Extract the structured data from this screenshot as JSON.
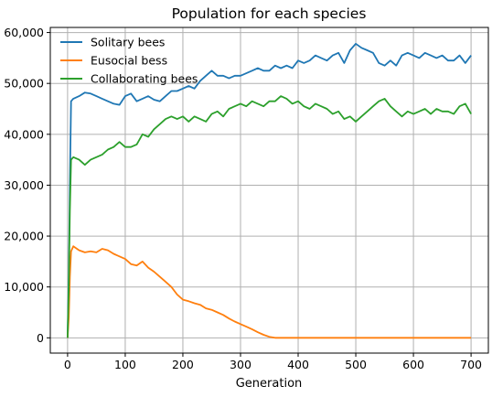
{
  "chart_data": {
    "type": "line",
    "title": "Population for each species",
    "xlabel": "Generation",
    "ylabel": "",
    "xlim": [
      -30,
      730
    ],
    "ylim": [
      -3000,
      61000
    ],
    "xticks": [
      0,
      100,
      200,
      300,
      400,
      500,
      600,
      700
    ],
    "yticks": [
      0,
      10000,
      20000,
      30000,
      40000,
      50000,
      60000
    ],
    "ytick_labels": [
      "0",
      "10,000",
      "20,000",
      "30,000",
      "40,000",
      "50,000",
      "60,000"
    ],
    "grid": true,
    "legend": "top-left",
    "series": [
      {
        "name": "Solitary bees",
        "color": "#1f77b4",
        "x": [
          0,
          2,
          4,
          6,
          10,
          20,
          30,
          40,
          50,
          60,
          70,
          80,
          90,
          100,
          110,
          120,
          130,
          140,
          150,
          160,
          170,
          180,
          190,
          200,
          210,
          220,
          230,
          240,
          250,
          260,
          270,
          280,
          290,
          300,
          310,
          320,
          330,
          340,
          350,
          360,
          370,
          380,
          390,
          400,
          410,
          420,
          430,
          440,
          450,
          460,
          470,
          480,
          490,
          500,
          510,
          520,
          530,
          540,
          550,
          560,
          570,
          580,
          590,
          600,
          610,
          620,
          630,
          640,
          650,
          660,
          670,
          680,
          690,
          700
        ],
        "y": [
          0,
          12000,
          30000,
          46500,
          47000,
          47500,
          48200,
          48000,
          47500,
          47000,
          46500,
          46000,
          45800,
          47500,
          48000,
          46500,
          47000,
          47500,
          46800,
          46500,
          47500,
          48500,
          48500,
          49000,
          49500,
          49000,
          50500,
          51500,
          52500,
          51500,
          51500,
          51000,
          51500,
          51500,
          52000,
          52500,
          53000,
          52500,
          52500,
          53500,
          53000,
          53500,
          53000,
          54500,
          54000,
          54500,
          55500,
          55000,
          54500,
          55500,
          56000,
          54000,
          56500,
          57800,
          57000,
          56500,
          56000,
          54000,
          53500,
          54500,
          53500,
          55500,
          56000,
          55500,
          55000,
          56000,
          55500,
          55000,
          55500,
          54500,
          54500,
          55500,
          54000,
          55500
        ]
      },
      {
        "name": "Eusocial bess",
        "color": "#ff7f0e",
        "x": [
          0,
          2,
          4,
          6,
          10,
          20,
          30,
          40,
          50,
          60,
          70,
          80,
          90,
          100,
          110,
          120,
          130,
          140,
          150,
          160,
          170,
          180,
          190,
          200,
          210,
          220,
          230,
          240,
          250,
          260,
          270,
          280,
          290,
          300,
          310,
          320,
          330,
          340,
          350,
          360,
          370,
          700
        ],
        "y": [
          0,
          4000,
          12000,
          17000,
          18000,
          17200,
          16800,
          17000,
          16800,
          17500,
          17200,
          16500,
          16000,
          15500,
          14500,
          14200,
          15000,
          13800,
          13000,
          12000,
          11000,
          10000,
          8500,
          7500,
          7200,
          6800,
          6500,
          5800,
          5500,
          5000,
          4500,
          3800,
          3200,
          2700,
          2200,
          1700,
          1100,
          600,
          200,
          0,
          0,
          0
        ]
      },
      {
        "name": "Collaborating bees",
        "color": "#2ca02c",
        "x": [
          0,
          2,
          4,
          6,
          10,
          20,
          30,
          40,
          50,
          60,
          70,
          80,
          90,
          100,
          110,
          120,
          130,
          140,
          150,
          160,
          170,
          180,
          190,
          200,
          210,
          220,
          230,
          240,
          250,
          260,
          270,
          280,
          290,
          300,
          310,
          320,
          330,
          340,
          350,
          360,
          370,
          380,
          390,
          400,
          410,
          420,
          430,
          440,
          450,
          460,
          470,
          480,
          490,
          500,
          510,
          520,
          530,
          540,
          550,
          560,
          570,
          580,
          590,
          600,
          610,
          620,
          630,
          640,
          650,
          660,
          670,
          680,
          690,
          700
        ],
        "y": [
          0,
          10000,
          25000,
          35000,
          35500,
          35000,
          34000,
          35000,
          35500,
          36000,
          37000,
          37500,
          38500,
          37500,
          37500,
          38000,
          40000,
          39500,
          41000,
          42000,
          43000,
          43500,
          43000,
          43500,
          42500,
          43500,
          43000,
          42500,
          44000,
          44500,
          43500,
          45000,
          45500,
          46000,
          45500,
          46500,
          46000,
          45500,
          46500,
          46500,
          47500,
          47000,
          46000,
          46500,
          45500,
          45000,
          46000,
          45500,
          45000,
          44000,
          44500,
          43000,
          43500,
          42500,
          43500,
          44500,
          45500,
          46500,
          47000,
          45500,
          44500,
          43500,
          44500,
          44000,
          44500,
          45000,
          44000,
          45000,
          44500,
          44500,
          44000,
          45500,
          46000,
          44000
        ]
      }
    ]
  }
}
